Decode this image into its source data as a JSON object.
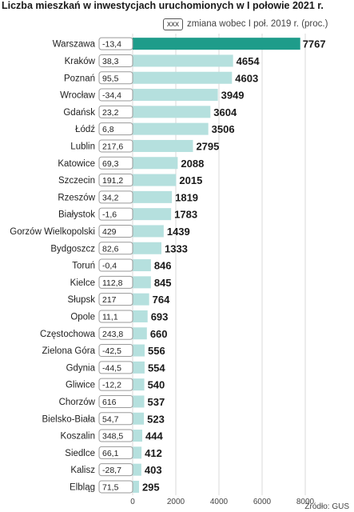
{
  "title": "Liczba mieszkań w inwestycjach uruchomionych w I połowie 2021 r.",
  "legend": {
    "box_text": "xxx",
    "label": "zmiana wobec I poł. 2019 r. (proc.)"
  },
  "source": "Źródło: GUS",
  "colors": {
    "bar": "#b5e0de",
    "bar_highlight": "#1e9c8a",
    "grid": "#d8d8d8"
  },
  "chart_data": {
    "type": "bar",
    "orientation": "horizontal",
    "title": "Liczba mieszkań w inwestycjach uruchomionych w I połowie 2021 r.",
    "xlim": [
      0,
      8000
    ],
    "xticks": [
      0,
      2000,
      4000,
      6000,
      8000
    ],
    "grid": true,
    "categories": [
      "Warszawa",
      "Kraków",
      "Poznań",
      "Wrocław",
      "Gdańsk",
      "Łódź",
      "Lublin",
      "Katowice",
      "Szczecin",
      "Rzeszów",
      "Białystok",
      "Gorzów Wielkopolski",
      "Bydgoszcz",
      "Toruń",
      "Kielce",
      "Słupsk",
      "Opole",
      "Częstochowa",
      "Zielona Góra",
      "Gdynia",
      "Gliwice",
      "Chorzów",
      "Bielsko-Biała",
      "Koszalin",
      "Siedlce",
      "Kalisz",
      "Elbląg"
    ],
    "values": [
      7767,
      4654,
      4603,
      3949,
      3604,
      3506,
      2795,
      2088,
      2015,
      1819,
      1783,
      1439,
      1333,
      846,
      845,
      764,
      693,
      660,
      556,
      554,
      540,
      537,
      523,
      444,
      412,
      403,
      295
    ],
    "changes": [
      "-13,4",
      "38,3",
      "95,5",
      "-34,4",
      "23,2",
      "6,8",
      "217,6",
      "69,3",
      "191,2",
      "34,2",
      "-1,6",
      "429",
      "82,6",
      "-0,4",
      "112,8",
      "217",
      "11,1",
      "243,8",
      "-42,5",
      "-44,5",
      "-12,2",
      "616",
      "54,7",
      "348,5",
      "66,1",
      "-28,7",
      "71,5"
    ],
    "value_labels": [
      "7767",
      "4654",
      "4603",
      "3949",
      "3604",
      "3506",
      "2795",
      "2088",
      "2015",
      "1819",
      "1783",
      "1439",
      "1333",
      "846",
      "845",
      "764",
      "693",
      "660",
      "556",
      "554",
      "540",
      "537",
      "523",
      "444",
      "412",
      "403",
      "295"
    ],
    "tick_labels": [
      "0",
      "2000",
      "4000",
      "6000",
      "8000"
    ],
    "highlight_index": 0
  }
}
